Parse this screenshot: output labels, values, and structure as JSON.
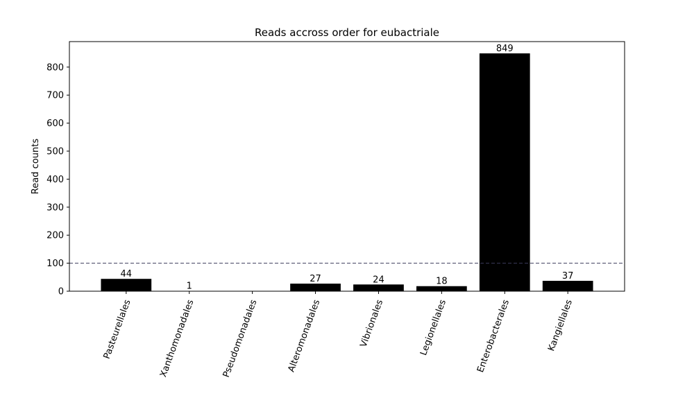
{
  "chart_data": {
    "type": "bar",
    "title": "Reads accross order for eubactriale",
    "xlabel": "",
    "ylabel": "Read counts",
    "categories": [
      "Pasteurellales",
      "Xanthomonadales",
      "Pseudomonadales",
      "Alteromonadales",
      "Vibrionales",
      "Legionellales",
      "Enterobacterales",
      "Kangiellales"
    ],
    "values": [
      44,
      1,
      0,
      27,
      24,
      18,
      849,
      37
    ],
    "data_labels": [
      "44",
      "1",
      "",
      "27",
      "24",
      "18",
      "849",
      "37"
    ],
    "ylim": [
      0,
      891
    ],
    "yticks": [
      0,
      100,
      200,
      300,
      400,
      500,
      600,
      700,
      800
    ],
    "threshold": 100,
    "bar_color": "#000000",
    "threshold_color": "#3b3b5c",
    "grid": false,
    "legend": "none"
  }
}
